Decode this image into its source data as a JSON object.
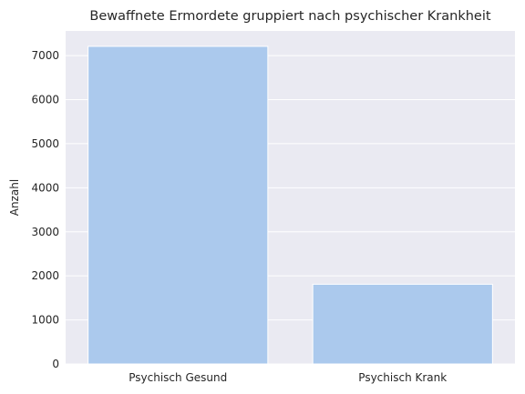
{
  "chart_data": {
    "type": "bar",
    "title": "Bewaffnete Ermordete gruppiert nach psychischer Krankheit",
    "xlabel": "",
    "ylabel": "Anzahl",
    "categories": [
      "Psychisch Gesund",
      "Psychisch Krank"
    ],
    "values": [
      7210,
      1810
    ],
    "ylim": [
      0,
      7560
    ],
    "yticks": [
      0,
      1000,
      2000,
      3000,
      4000,
      5000,
      6000,
      7000
    ],
    "grid": true,
    "legend": "none",
    "colors": {
      "bar": "#abc9ed",
      "background": "#eaeaf2",
      "grid": "#ffffff",
      "text": "#262626"
    }
  }
}
